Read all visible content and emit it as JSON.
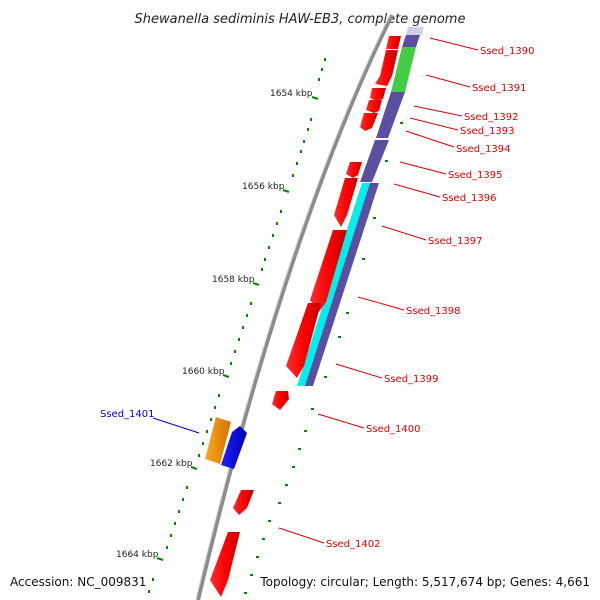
{
  "title": "Shewanella sediminis HAW-EB3, complete genome",
  "footer": {
    "accession": "Accession: NC_009831",
    "topology": "Topology: circular; Length: 5,517,674 bp; Genes: 4,661"
  },
  "colors": {
    "backbone": "#8c8c8c",
    "forward_gene": "#ff0000",
    "reverse_gene": "#0000ff",
    "cog_purple": "#5a4fa0",
    "cog_green": "#44cc44",
    "cog_cyan": "#00eeee",
    "cog_orange": "#ff9900",
    "label_forward": "#dd0000",
    "label_reverse": "#0000cc",
    "tick": "#008800"
  },
  "scale_labels": [
    "1654 kbp",
    "1656 kbp",
    "1658 kbp",
    "1660 kbp",
    "1662 kbp",
    "1664 kbp"
  ],
  "gene_labels": [
    {
      "text": "Ssed_1390",
      "strand": "forward"
    },
    {
      "text": "Ssed_1391",
      "strand": "forward"
    },
    {
      "text": "Ssed_1392",
      "strand": "forward"
    },
    {
      "text": "Ssed_1393",
      "strand": "forward"
    },
    {
      "text": "Ssed_1394",
      "strand": "forward"
    },
    {
      "text": "Ssed_1395",
      "strand": "forward"
    },
    {
      "text": "Ssed_1396",
      "strand": "forward"
    },
    {
      "text": "Ssed_1397",
      "strand": "forward"
    },
    {
      "text": "Ssed_1398",
      "strand": "forward"
    },
    {
      "text": "Ssed_1399",
      "strand": "forward"
    },
    {
      "text": "Ssed_1400",
      "strand": "forward"
    },
    {
      "text": "Ssed_1401",
      "strand": "reverse"
    },
    {
      "text": "Ssed_1402",
      "strand": "forward"
    }
  ]
}
